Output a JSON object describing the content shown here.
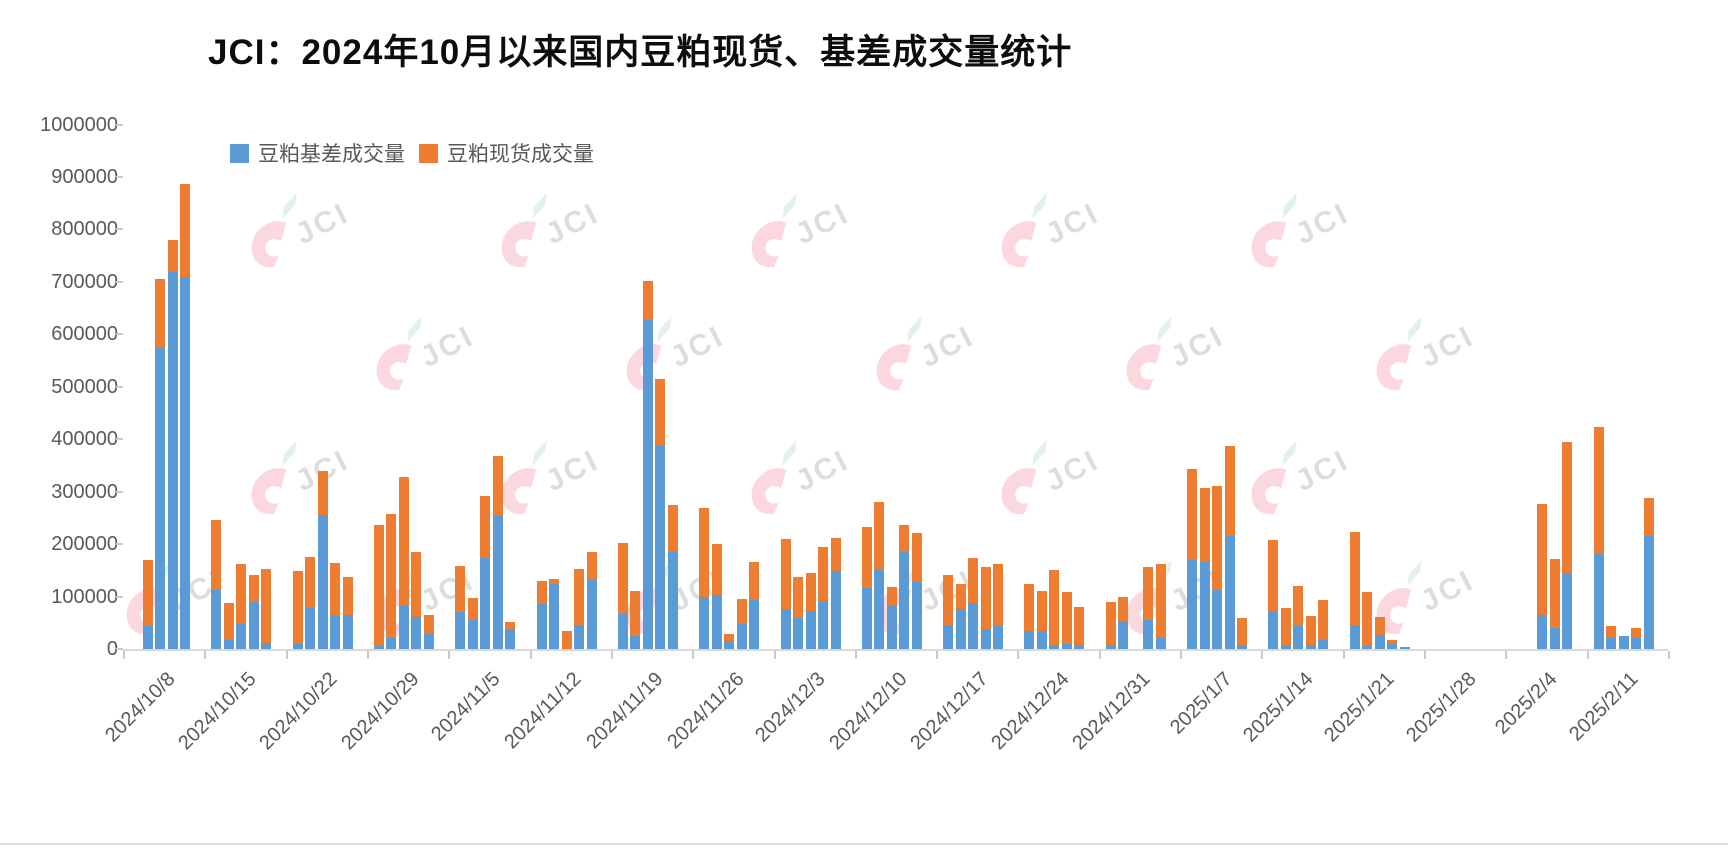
{
  "watermark": {
    "text": "JCI"
  },
  "chart_data": {
    "type": "bar",
    "stacked": true,
    "title": "JCI：2024年10月以来国内豆粕现货、基差成交量统计",
    "series_names": [
      "豆粕基差成交量",
      "豆粕现货成交量"
    ],
    "colors": {
      "basis": "#5B9BD5",
      "spot": "#ED7D31"
    },
    "ylim": [
      0,
      1000000
    ],
    "ytick_step": 100000,
    "grid": false,
    "legend_position": "top-left-inside",
    "x_note": "weekly clusters of daily stacked bars; slot = weekday index Mon..Fri; missing slots are market holidays",
    "weeks": [
      {
        "label": "2024/10/8",
        "bars": [
          {
            "slot": 1,
            "basis": 43000,
            "spot": 127000
          },
          {
            "slot": 2,
            "basis": 576000,
            "spot": 129000
          },
          {
            "slot": 3,
            "basis": 719000,
            "spot": 60000
          },
          {
            "slot": 4,
            "basis": 710000,
            "spot": 177000
          }
        ]
      },
      {
        "label": "2024/10/15",
        "bars": [
          {
            "slot": 0,
            "basis": 113000,
            "spot": 133000
          },
          {
            "slot": 1,
            "basis": 18000,
            "spot": 70000
          },
          {
            "slot": 2,
            "basis": 48000,
            "spot": 114000
          },
          {
            "slot": 3,
            "basis": 90000,
            "spot": 52000
          },
          {
            "slot": 4,
            "basis": 12000,
            "spot": 141000
          }
        ]
      },
      {
        "label": "2024/10/22",
        "bars": [
          {
            "slot": 0,
            "basis": 10000,
            "spot": 139000
          },
          {
            "slot": 1,
            "basis": 78000,
            "spot": 97000
          },
          {
            "slot": 2,
            "basis": 256000,
            "spot": 84000
          },
          {
            "slot": 3,
            "basis": 65000,
            "spot": 99000
          },
          {
            "slot": 4,
            "basis": 65000,
            "spot": 72000
          }
        ]
      },
      {
        "label": "2024/10/29",
        "bars": [
          {
            "slot": 0,
            "basis": 5000,
            "spot": 231000
          },
          {
            "slot": 1,
            "basis": 21000,
            "spot": 237000
          },
          {
            "slot": 2,
            "basis": 83000,
            "spot": 244000
          },
          {
            "slot": 3,
            "basis": 61000,
            "spot": 123000
          },
          {
            "slot": 4,
            "basis": 29000,
            "spot": 35000
          }
        ]
      },
      {
        "label": "2024/11/5",
        "bars": [
          {
            "slot": 0,
            "basis": 70000,
            "spot": 89000
          },
          {
            "slot": 1,
            "basis": 55000,
            "spot": 42000
          },
          {
            "slot": 2,
            "basis": 173000,
            "spot": 118000
          },
          {
            "slot": 3,
            "basis": 254000,
            "spot": 114000
          },
          {
            "slot": 4,
            "basis": 38000,
            "spot": 13000
          }
        ]
      },
      {
        "label": "2024/11/12",
        "bars": [
          {
            "slot": 0,
            "basis": 86000,
            "spot": 43000
          },
          {
            "slot": 1,
            "basis": 123000,
            "spot": 10000
          },
          {
            "slot": 2,
            "basis": 0,
            "spot": 35000
          },
          {
            "slot": 3,
            "basis": 46000,
            "spot": 106000
          },
          {
            "slot": 4,
            "basis": 132000,
            "spot": 52000
          }
        ]
      },
      {
        "label": "2024/11/19",
        "bars": [
          {
            "slot": 0,
            "basis": 67000,
            "spot": 135000
          },
          {
            "slot": 1,
            "basis": 24000,
            "spot": 86000
          },
          {
            "slot": 2,
            "basis": 629000,
            "spot": 72000
          },
          {
            "slot": 3,
            "basis": 389000,
            "spot": 126000
          },
          {
            "slot": 4,
            "basis": 187000,
            "spot": 88000
          }
        ]
      },
      {
        "label": "2024/11/26",
        "bars": [
          {
            "slot": 0,
            "basis": 100000,
            "spot": 169000
          },
          {
            "slot": 1,
            "basis": 103000,
            "spot": 97000
          },
          {
            "slot": 2,
            "basis": 16000,
            "spot": 13000
          },
          {
            "slot": 3,
            "basis": 48000,
            "spot": 48000
          },
          {
            "slot": 4,
            "basis": 94000,
            "spot": 72000
          }
        ]
      },
      {
        "label": "2024/12/3",
        "bars": [
          {
            "slot": 0,
            "basis": 76000,
            "spot": 134000
          },
          {
            "slot": 1,
            "basis": 59000,
            "spot": 78000
          },
          {
            "slot": 2,
            "basis": 72000,
            "spot": 73000
          },
          {
            "slot": 3,
            "basis": 91000,
            "spot": 103000
          },
          {
            "slot": 4,
            "basis": 148000,
            "spot": 63000
          }
        ]
      },
      {
        "label": "2024/12/10",
        "bars": [
          {
            "slot": 0,
            "basis": 116000,
            "spot": 116000
          },
          {
            "slot": 1,
            "basis": 150000,
            "spot": 131000
          },
          {
            "slot": 2,
            "basis": 84000,
            "spot": 35000
          },
          {
            "slot": 3,
            "basis": 187000,
            "spot": 50000
          },
          {
            "slot": 4,
            "basis": 127000,
            "spot": 95000
          }
        ]
      },
      {
        "label": "2024/12/17",
        "bars": [
          {
            "slot": 0,
            "basis": 46000,
            "spot": 96000
          },
          {
            "slot": 1,
            "basis": 76000,
            "spot": 48000
          },
          {
            "slot": 2,
            "basis": 88000,
            "spot": 85000
          },
          {
            "slot": 3,
            "basis": 38000,
            "spot": 118000
          },
          {
            "slot": 4,
            "basis": 43000,
            "spot": 120000
          }
        ]
      },
      {
        "label": "2024/12/24",
        "bars": [
          {
            "slot": 0,
            "basis": 34000,
            "spot": 89000
          },
          {
            "slot": 1,
            "basis": 35000,
            "spot": 75000
          },
          {
            "slot": 2,
            "basis": 8000,
            "spot": 142000
          },
          {
            "slot": 3,
            "basis": 10000,
            "spot": 99000
          },
          {
            "slot": 4,
            "basis": 8000,
            "spot": 73000
          }
        ]
      },
      {
        "label": "2024/12/31",
        "bars": [
          {
            "slot": 0,
            "basis": 7000,
            "spot": 83000
          },
          {
            "slot": 1,
            "basis": 54000,
            "spot": 46000
          },
          {
            "slot": 3,
            "basis": 55000,
            "spot": 101000
          },
          {
            "slot": 4,
            "basis": 21000,
            "spot": 141000
          }
        ]
      },
      {
        "label": "2025/1/7",
        "bars": [
          {
            "slot": 0,
            "basis": 170000,
            "spot": 173000
          },
          {
            "slot": 1,
            "basis": 165000,
            "spot": 142000
          },
          {
            "slot": 2,
            "basis": 112000,
            "spot": 198000
          },
          {
            "slot": 3,
            "basis": 215000,
            "spot": 172000
          },
          {
            "slot": 4,
            "basis": 8000,
            "spot": 52000
          }
        ]
      },
      {
        "label": "2025/1/14",
        "bars": [
          {
            "slot": 0,
            "basis": 72000,
            "spot": 136000
          },
          {
            "slot": 1,
            "basis": 7000,
            "spot": 72000
          },
          {
            "slot": 2,
            "basis": 44000,
            "spot": 77000
          },
          {
            "slot": 3,
            "basis": 7000,
            "spot": 56000
          },
          {
            "slot": 4,
            "basis": 17000,
            "spot": 77000
          }
        ]
      },
      {
        "label": "2025/1/21",
        "bars": [
          {
            "slot": 0,
            "basis": 45000,
            "spot": 178000
          },
          {
            "slot": 1,
            "basis": 5000,
            "spot": 103000
          },
          {
            "slot": 2,
            "basis": 26000,
            "spot": 35000
          },
          {
            "slot": 3,
            "basis": 12000,
            "spot": 5000
          },
          {
            "slot": 4,
            "basis": 4000,
            "spot": 0
          }
        ]
      },
      {
        "label": "2025/1/28",
        "bars": []
      },
      {
        "label": "2025/2/4",
        "bars": [
          {
            "slot": 2,
            "basis": 65000,
            "spot": 211000
          },
          {
            "slot": 3,
            "basis": 40000,
            "spot": 131000
          },
          {
            "slot": 4,
            "basis": 145000,
            "spot": 249000
          }
        ]
      },
      {
        "label": "2025/2/11",
        "bars": [
          {
            "slot": 0,
            "basis": 182000,
            "spot": 242000
          },
          {
            "slot": 1,
            "basis": 21000,
            "spot": 22000
          },
          {
            "slot": 2,
            "basis": 24000,
            "spot": 0
          },
          {
            "slot": 3,
            "basis": 21000,
            "spot": 19000
          },
          {
            "slot": 4,
            "basis": 216000,
            "spot": 72000
          }
        ]
      }
    ]
  }
}
